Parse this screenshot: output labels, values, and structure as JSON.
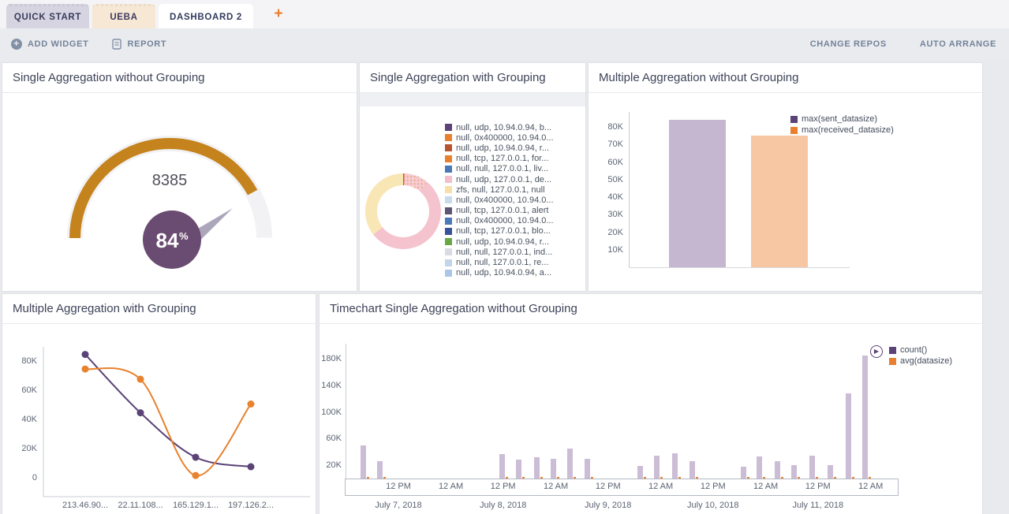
{
  "tabs": [
    {
      "label": "QUICK START"
    },
    {
      "label": "UEBA"
    },
    {
      "label": "DASHBOARD 2"
    }
  ],
  "new_tab_label": "+",
  "toolbar": {
    "add_widget": "ADD WIDGET",
    "report": "REPORT",
    "change_repos": "CHANGE REPOS",
    "auto_arrange": "AUTO ARRANGE"
  },
  "widgets": [
    {
      "title": "Single Aggregation without Grouping"
    },
    {
      "title": "Single Aggregation with Grouping"
    },
    {
      "title": "Multiple Aggregation without Grouping"
    },
    {
      "title": "Multiple Aggregation with Grouping"
    },
    {
      "title": "Timechart Single Aggregation without Grouping"
    }
  ],
  "colors": {
    "accent_orange": "#ed7d2b",
    "gauge_arc": "#c5831e",
    "gauge_track": "#f2f2f5",
    "gauge_badge": "#6a4b71",
    "needle": "#aca6bb",
    "purple_series": "#5b4377",
    "orange_series": "#e8802f",
    "lavender_bar": "#c6b7d0",
    "peach_bar": "#f7c7a4",
    "timechart_bar": "#cbbdd5"
  },
  "chart_data": [
    {
      "id": "gauge",
      "type": "gauge",
      "title": "Single Aggregation without Grouping",
      "display_value": "8385",
      "percent": 84,
      "percent_label": "84",
      "percent_sign": "%"
    },
    {
      "id": "donut",
      "type": "pie",
      "title": "Single Aggregation with Grouping",
      "segments": [
        {
          "pct": 0.6,
          "color": "#e2542b",
          "dotted": false
        },
        {
          "pct": 10.4,
          "color": "#f5c9d2",
          "dotted": true
        },
        {
          "pct": 53.5,
          "color": "#f4c3ce",
          "dotted": false
        },
        {
          "pct": 35.5,
          "color": "#f9e6b5",
          "dotted": false
        }
      ],
      "legend": [
        {
          "label": "null, udp, 10.94.0.94, b...",
          "color": "#5b4377",
          "dotted": false
        },
        {
          "label": "null, 0x400000, 10.94.0...",
          "color": "#e8802f",
          "dotted": false
        },
        {
          "label": "null, udp, 10.94.0.94, r...",
          "color": "#b65430",
          "dotted": true
        },
        {
          "label": "null, tcp, 127.0.0.1, for...",
          "color": "#e8812f",
          "dotted": true
        },
        {
          "label": "null, null, 127.0.0.1, liv...",
          "color": "#4c79b5",
          "dotted": true
        },
        {
          "label": "null, udp, 127.0.0.1, de...",
          "color": "#f2bfca",
          "dotted": true
        },
        {
          "label": "zfs, null, 127.0.0.1, null",
          "color": "#f6e0a8",
          "dotted": true
        },
        {
          "label": "null, 0x400000, 10.94.0...",
          "color": "#c8daec",
          "dotted": true
        },
        {
          "label": "null, tcp, 127.0.0.1, alert",
          "color": "#5e5672",
          "dotted": true
        },
        {
          "label": "null, 0x400000, 10.94.0...",
          "color": "#4c79b8",
          "dotted": true
        },
        {
          "label": "null, tcp, 127.0.0.1, blo...",
          "color": "#39539b",
          "dotted": true
        },
        {
          "label": "null, udp, 10.94.0.94, r...",
          "color": "#69a744",
          "dotted": false
        },
        {
          "label": "null, null, 127.0.0.1, ind...",
          "color": "#d8dbe1",
          "dotted": false
        },
        {
          "label": "null, null, 127.0.0.1, re...",
          "color": "#c2d5ea",
          "dotted": false
        },
        {
          "label": "null, udp, 10.94.0.94, a...",
          "color": "#a9c7e5",
          "dotted": true
        }
      ]
    },
    {
      "id": "bars",
      "type": "bar",
      "title": "Multiple Aggregation without Grouping",
      "categories": [
        ""
      ],
      "series": [
        {
          "name": "max(sent_datasize)",
          "bar_color": "#c6b7d0",
          "legend_color": "#5b4377",
          "values": [
            84000
          ]
        },
        {
          "name": "max(received_datasize)",
          "bar_color": "#f7c7a4",
          "legend_color": "#e8802f",
          "values": [
            75000
          ]
        }
      ],
      "y_ticks": [
        {
          "v": 10,
          "label": "10K"
        },
        {
          "v": 20,
          "label": "20K"
        },
        {
          "v": 30,
          "label": "30K"
        },
        {
          "v": 40,
          "label": "40K"
        },
        {
          "v": 50,
          "label": "50K"
        },
        {
          "v": 60,
          "label": "60K"
        },
        {
          "v": 70,
          "label": "70K"
        },
        {
          "v": 80,
          "label": "80K"
        }
      ],
      "ylim": [
        0,
        88500
      ],
      "legend_position": "right"
    },
    {
      "id": "lines",
      "type": "line",
      "title": "Multiple Aggregation with Grouping",
      "categories": [
        "213.46.90...",
        "22.11.108...",
        "165.129.1...",
        "197.126.2..."
      ],
      "series": [
        {
          "color": "#5b4377",
          "values_k": [
            84,
            44,
            13.5,
            7
          ]
        },
        {
          "color": "#e8822f",
          "values_k": [
            74,
            67,
            1,
            50
          ]
        }
      ],
      "y_ticks": [
        {
          "v": 0,
          "label": "0"
        },
        {
          "v": 20,
          "label": "20K"
        },
        {
          "v": 40,
          "label": "40K"
        },
        {
          "v": 60,
          "label": "60K"
        },
        {
          "v": 80,
          "label": "80K"
        }
      ],
      "ylim": [
        0,
        86000
      ]
    },
    {
      "id": "timechart",
      "type": "bar",
      "title": "Timechart Single Aggregation without Grouping",
      "legend": [
        {
          "name": "count()",
          "color": "#5b4377"
        },
        {
          "name": "avg(datasize)",
          "color": "#e8802f"
        }
      ],
      "y_ticks": [
        {
          "v": 20,
          "label": "20K"
        },
        {
          "v": 60,
          "label": "60K"
        },
        {
          "v": 100,
          "label": "100K"
        },
        {
          "v": 140,
          "label": "140K"
        },
        {
          "v": 180,
          "label": "180K"
        }
      ],
      "ylim": [
        0,
        192000
      ],
      "bars_k": [
        {
          "f": 0.031,
          "v": 50
        },
        {
          "f": 0.062,
          "v": 26
        },
        {
          "f": 0.284,
          "v": 37
        },
        {
          "f": 0.315,
          "v": 28
        },
        {
          "f": 0.347,
          "v": 32
        },
        {
          "f": 0.378,
          "v": 30
        },
        {
          "f": 0.408,
          "v": 45
        },
        {
          "f": 0.44,
          "v": 30
        },
        {
          "f": 0.535,
          "v": 19
        },
        {
          "f": 0.565,
          "v": 34
        },
        {
          "f": 0.598,
          "v": 38
        },
        {
          "f": 0.63,
          "v": 26
        },
        {
          "f": 0.723,
          "v": 18
        },
        {
          "f": 0.753,
          "v": 33
        },
        {
          "f": 0.785,
          "v": 26
        },
        {
          "f": 0.816,
          "v": 20
        },
        {
          "f": 0.849,
          "v": 34
        },
        {
          "f": 0.881,
          "v": 20
        },
        {
          "f": 0.914,
          "v": 128
        },
        {
          "f": 0.945,
          "v": 185
        }
      ],
      "avg_bar_k": 2,
      "x_ticks": [
        {
          "f": 0.0955,
          "label": "12 PM"
        },
        {
          "f": 0.191,
          "label": "12 AM"
        },
        {
          "f": 0.286,
          "label": "12 PM"
        },
        {
          "f": 0.382,
          "label": "12 AM"
        },
        {
          "f": 0.477,
          "label": "12 PM"
        },
        {
          "f": 0.573,
          "label": "12 AM"
        },
        {
          "f": 0.668,
          "label": "12 PM"
        },
        {
          "f": 0.764,
          "label": "12 AM"
        },
        {
          "f": 0.859,
          "label": "12 PM"
        },
        {
          "f": 0.955,
          "label": "12 AM"
        }
      ],
      "date_labels": [
        {
          "f": 0.0955,
          "label": "July 7, 2018"
        },
        {
          "f": 0.286,
          "label": "July 8, 2018"
        },
        {
          "f": 0.477,
          "label": "July 9, 2018"
        },
        {
          "f": 0.668,
          "label": "July 10, 2018"
        },
        {
          "f": 0.859,
          "label": "July 11, 2018"
        }
      ]
    }
  ]
}
